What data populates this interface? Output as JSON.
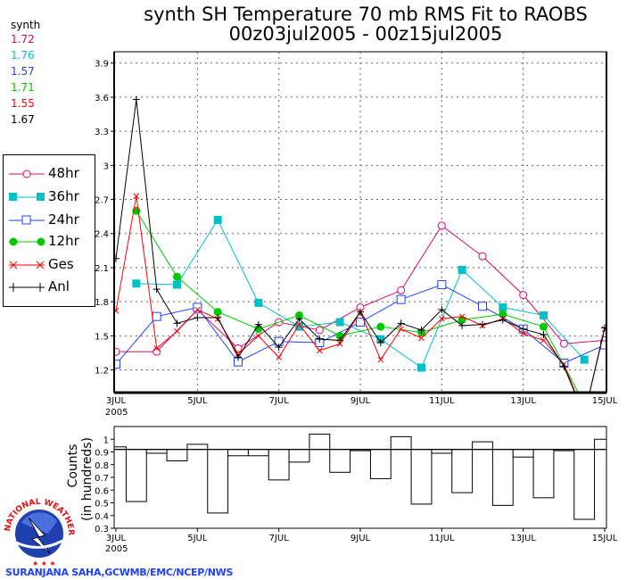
{
  "title_line1": "synth SH Temperature 70 mb RMS Fit to RAOBS",
  "title_line2": "00z03jul2005 - 00z15jul2005",
  "stats": {
    "label": "synth",
    "values": [
      {
        "value": "1.72",
        "color": "#d8086c"
      },
      {
        "value": "1.76",
        "color": "#00c0c8"
      },
      {
        "value": "1.57",
        "color": "#2040ff"
      },
      {
        "value": "1.71",
        "color": "#00c800"
      },
      {
        "value": "1.55",
        "color": "#ff0000"
      },
      {
        "value": "1.67",
        "color": "#000000"
      }
    ]
  },
  "credit": "SURANJANA SAHA,GCWMB/EMC/NCEP/NWS",
  "logo_text": "NATIONAL WEATHER SERVICE",
  "chart_data": [
    {
      "type": "line",
      "x_tick_labels": [
        "3JUL",
        "5JUL",
        "7JUL",
        "9JUL",
        "11JUL",
        "13JUL",
        "15JUL"
      ],
      "x_sub_label": "2005",
      "x_range_days": [
        0,
        12
      ],
      "ylim": [
        1.0,
        4.0
      ],
      "y_ticks": [
        "1.2",
        "1.5",
        "1.8",
        "2.1",
        "2.4",
        "2.7",
        "3",
        "3.3",
        "3.6",
        "3.9"
      ],
      "grid": true,
      "legend_position": "left",
      "series": [
        {
          "name": "48hr",
          "color": "#d8086c",
          "marker": "open-circle",
          "x_days": [
            0,
            1,
            2,
            3,
            4,
            5,
            6,
            7,
            8,
            9,
            10,
            11,
            12
          ],
          "values": [
            1.36,
            1.36,
            1.73,
            1.39,
            1.62,
            1.55,
            1.75,
            1.9,
            2.47,
            2.2,
            1.86,
            1.43,
            1.46
          ]
        },
        {
          "name": "36hr",
          "color": "#00c0c8",
          "marker": "filled-square",
          "x_days": [
            0.5,
            1.5,
            2.5,
            3.5,
            4.5,
            5.5,
            6.5,
            7.5,
            8.5,
            9.5,
            10.5,
            11.5
          ],
          "values": [
            1.96,
            1.95,
            2.52,
            1.79,
            1.58,
            1.62,
            1.47,
            1.22,
            2.08,
            1.75,
            1.68,
            1.29
          ]
        },
        {
          "name": "24hr",
          "color": "#2040ff",
          "marker": "open-square",
          "x_days": [
            0,
            1,
            2,
            3,
            4,
            5,
            6,
            7,
            8,
            9,
            10,
            11,
            12
          ],
          "values": [
            1.25,
            1.67,
            1.75,
            1.27,
            1.45,
            1.44,
            1.62,
            1.82,
            1.95,
            1.76,
            1.56,
            1.26,
            1.42
          ]
        },
        {
          "name": "12hr",
          "color": "#00c800",
          "marker": "filled-circle",
          "x_days": [
            0.5,
            1.5,
            2.5,
            3.5,
            4.5,
            5.5,
            6.5,
            7.5,
            8.5,
            9.5,
            10.5,
            11.5
          ],
          "values": [
            2.6,
            2.02,
            1.71,
            1.56,
            1.68,
            1.5,
            1.58,
            1.53,
            1.64,
            1.69,
            1.58,
            0.9
          ]
        },
        {
          "name": "Ges",
          "color": "#ff0000",
          "marker": "x",
          "x_days": [
            0,
            0.5,
            1,
            1.5,
            2,
            2.5,
            3,
            3.5,
            4,
            4.5,
            5,
            5.5,
            6,
            6.5,
            7,
            7.5,
            8,
            8.5,
            9,
            9.5,
            10,
            10.5,
            11,
            11.5,
            12
          ],
          "values": [
            1.72,
            2.73,
            1.39,
            1.54,
            1.73,
            1.65,
            1.34,
            1.5,
            1.31,
            1.6,
            1.37,
            1.43,
            1.71,
            1.29,
            1.56,
            1.48,
            1.65,
            1.67,
            1.59,
            1.65,
            1.52,
            1.46,
            1.25,
            0.8,
            1.56
          ]
        },
        {
          "name": "Anl",
          "color": "#000000",
          "marker": "plus",
          "x_days": [
            0,
            0.5,
            1,
            1.5,
            2,
            2.5,
            3,
            3.5,
            4,
            4.5,
            5,
            5.5,
            6,
            6.5,
            7,
            7.5,
            8,
            8.5,
            9,
            9.5,
            10,
            10.5,
            11,
            11.5,
            12
          ],
          "values": [
            2.18,
            3.58,
            1.91,
            1.61,
            1.66,
            1.66,
            1.31,
            1.6,
            1.4,
            1.65,
            1.47,
            1.46,
            1.71,
            1.44,
            1.61,
            1.55,
            1.73,
            1.59,
            1.6,
            1.64,
            1.56,
            1.51,
            1.23,
            0.8,
            1.57
          ]
        }
      ]
    },
    {
      "type": "bar",
      "ylabel": "Counts",
      "ylabel2": "(in hundreds)",
      "x_tick_labels": [
        "3JUL",
        "5JUL",
        "7JUL",
        "9JUL",
        "11JUL",
        "13JUL",
        "15JUL"
      ],
      "x_sub_label": "2005",
      "ylim": [
        0.3,
        1.1
      ],
      "y_ticks": [
        "0.3",
        "0.4",
        "0.5",
        "0.6",
        "0.7",
        "0.8",
        "0.9",
        "1"
      ],
      "reference_line": 0.92,
      "x_days": [
        0,
        0.5,
        1,
        1.5,
        2,
        2.5,
        3,
        3.5,
        4,
        4.5,
        5,
        5.5,
        6,
        6.5,
        7,
        7.5,
        8,
        8.5,
        9,
        9.5,
        10,
        10.5,
        11,
        11.5,
        12
      ],
      "values": [
        0.94,
        0.51,
        0.89,
        0.83,
        0.96,
        0.42,
        0.87,
        0.87,
        0.68,
        0.82,
        1.04,
        0.74,
        0.91,
        0.69,
        1.02,
        0.49,
        0.89,
        0.58,
        0.98,
        0.48,
        0.86,
        0.54,
        0.91,
        0.37,
        1.0
      ]
    }
  ]
}
